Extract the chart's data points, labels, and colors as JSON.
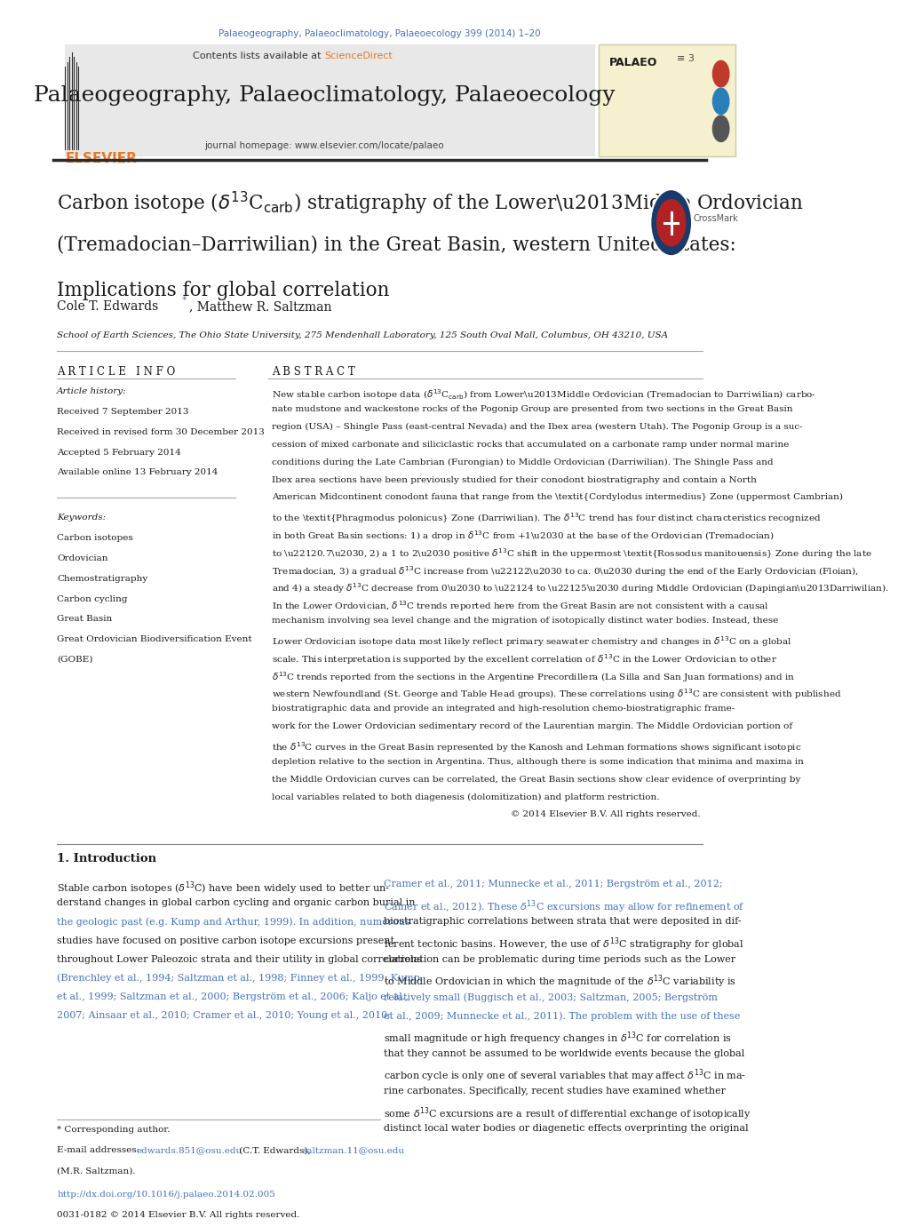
{
  "page_width": 10.2,
  "page_height": 13.59,
  "background_color": "#ffffff",
  "top_bar_text": "Palaeogeography, Palaeoclimatology, Palaeoecology 399 (2014) 1–20",
  "top_bar_color": "#4472C4",
  "header_bg": "#e8e8e8",
  "header_sciencedirect_color": "#e87722",
  "journal_title": "Palaeogeography, Palaeoclimatology, Palaeoecology",
  "journal_homepage": "journal homepage: www.elsevier.com/locate/palaeo",
  "received1": "Received 7 September 2013",
  "received2": "Received in revised form 30 December 2013",
  "accepted": "Accepted 5 February 2014",
  "available": "Available online 13 February 2014",
  "keywords": [
    "Carbon isotopes",
    "Ordovician",
    "Chemostratigraphy",
    "Carbon cycling",
    "Great Basin",
    "Great Ordovician Biodiversification Event",
    "(GOBE)"
  ],
  "affiliation": "School of Earth Sciences, The Ohio State University, 275 Mendenhall Laboratory, 125 South Oval Mall, Columbus, OH 43210, USA",
  "footer_doi": "http://dx.doi.org/10.1016/j.palaeo.2014.02.005",
  "footer_issn": "0031-0182 © 2014 Elsevier B.V. All rights reserved.",
  "link_color": "#4472C4",
  "separator_color": "#2c2c2c"
}
